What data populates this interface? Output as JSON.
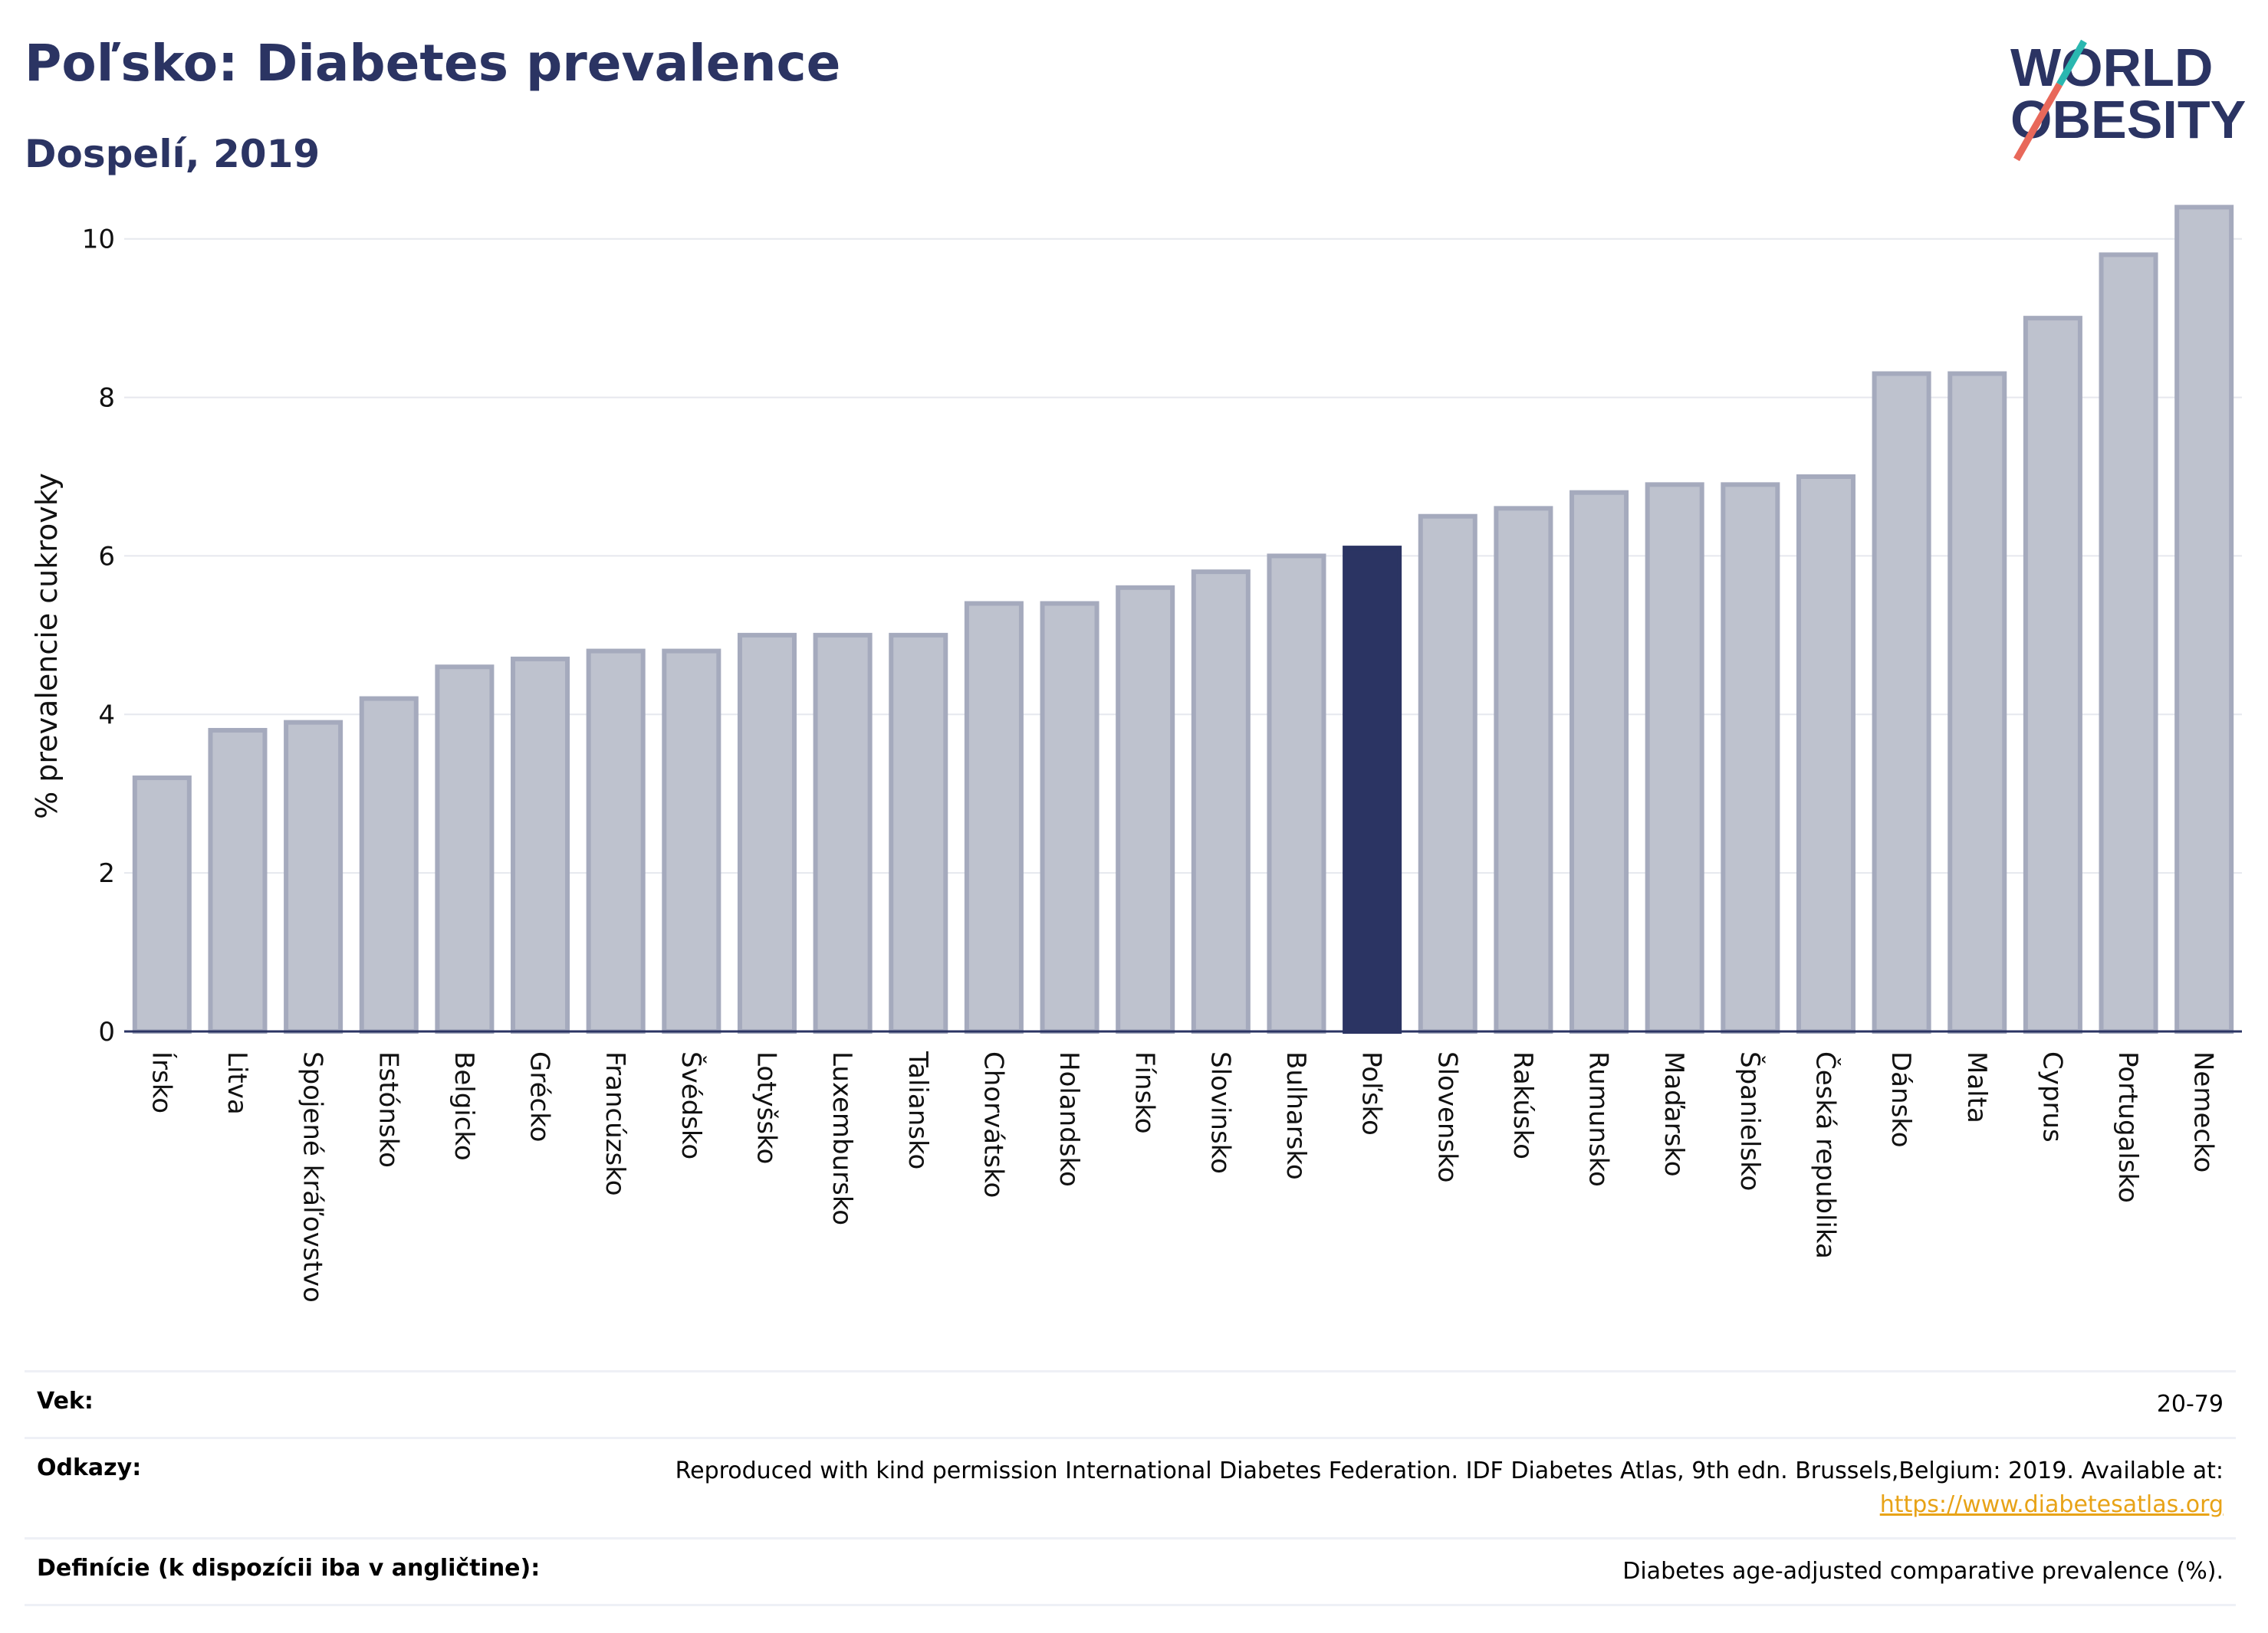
{
  "header": {
    "title": "Poľsko: Diabetes prevalence",
    "subtitle": "Dospelí, 2019"
  },
  "logo": {
    "line1": "WORLD",
    "line2": "OBESITY",
    "colors": {
      "text": "#2b3463",
      "slash_red": "#e8685a",
      "slash_teal": "#2ab7b0"
    }
  },
  "chart_data": {
    "type": "bar",
    "ylabel": "% prevalencie cukrovky",
    "ylim": [
      0,
      10.5
    ],
    "yticks": [
      0,
      2,
      4,
      6,
      8,
      10
    ],
    "grid": true,
    "highlight": "Poľsko",
    "colors": {
      "bar": "#bec2ce",
      "bar_border": "#a5aabd",
      "highlight": "#2b3463",
      "grid": "#e6e8ee",
      "axis": "#2b3463"
    },
    "categories": [
      "Írsko",
      "Litva",
      "Spojené kráľovstvo",
      "Estónsko",
      "Belgicko",
      "Grécko",
      "Francúzsko",
      "Švédsko",
      "Lotyšsko",
      "Luxembursko",
      "Taliansko",
      "Chorvátsko",
      "Holandsko",
      "Fínsko",
      "Slovinsko",
      "Bulharsko",
      "Poľsko",
      "Slovensko",
      "Rakúsko",
      "Rumunsko",
      "Maďarsko",
      "Španielsko",
      "Česká republika",
      "Dánsko",
      "Malta",
      "Cyprus",
      "Portugalsko",
      "Nemecko"
    ],
    "values": [
      3.2,
      3.8,
      3.9,
      4.2,
      4.6,
      4.7,
      4.8,
      4.8,
      5.0,
      5.0,
      5.0,
      5.4,
      5.4,
      5.6,
      5.8,
      6.0,
      6.1,
      6.5,
      6.6,
      6.8,
      6.9,
      6.9,
      7.0,
      8.3,
      8.3,
      9.0,
      9.8,
      10.4
    ]
  },
  "info": {
    "age_label": "Vek:",
    "age_value": "20-79",
    "refs_label": "Odkazy:",
    "refs_value": "Reproduced with kind permission International Diabetes Federation. IDF Diabetes Atlas, 9th edn. Brussels,Belgium: 2019. Available at:",
    "refs_link": "https://www.diabetesatlas.org",
    "def_label": "Definície (k dispozícii iba v angličtine):",
    "def_value": "Diabetes age-adjusted comparative prevalence (%)."
  }
}
